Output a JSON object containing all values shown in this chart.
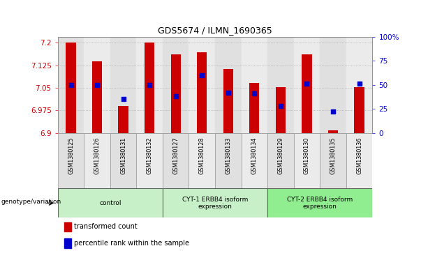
{
  "title": "GDS5674 / ILMN_1690365",
  "samples": [
    "GSM1380125",
    "GSM1380126",
    "GSM1380131",
    "GSM1380132",
    "GSM1380127",
    "GSM1380128",
    "GSM1380133",
    "GSM1380134",
    "GSM1380129",
    "GSM1380130",
    "GSM1380135",
    "GSM1380136"
  ],
  "bar_values": [
    7.2,
    7.138,
    6.99,
    7.2,
    7.16,
    7.168,
    7.112,
    7.065,
    7.052,
    7.162,
    6.908,
    7.052
  ],
  "dot_values_pct": [
    50,
    50,
    35,
    50,
    38,
    60,
    42,
    41,
    28,
    51,
    22,
    51
  ],
  "y_min": 6.9,
  "y_max": 7.22,
  "y_ticks": [
    6.9,
    6.975,
    7.05,
    7.125,
    7.2
  ],
  "y_tick_labels": [
    "6.9",
    "6.975",
    "7.05",
    "7.125",
    "7.2"
  ],
  "y2_ticks": [
    0,
    25,
    50,
    75,
    100
  ],
  "y2_tick_labels": [
    "0",
    "25",
    "50",
    "75",
    "100%"
  ],
  "bar_color": "#CC0000",
  "dot_color": "#0000CC",
  "groups": [
    {
      "label": "control",
      "start": 0,
      "end": 3,
      "color": "#c8f0c8"
    },
    {
      "label": "CYT-1 ERBB4 isoform\nexpression",
      "start": 4,
      "end": 7,
      "color": "#c8f0c8"
    },
    {
      "label": "CYT-2 ERBB4 isoform\nexpression",
      "start": 8,
      "end": 11,
      "color": "#90ee90"
    }
  ],
  "group_label_prefix": "genotype/variation",
  "legend_bar_label": "transformed count",
  "legend_dot_label": "percentile rank within the sample",
  "grid_color": "#aaaaaa",
  "col_bg_even": "#e0e0e0",
  "col_bg_odd": "#ebebeb",
  "sample_row_bg": "#d8d8d8"
}
